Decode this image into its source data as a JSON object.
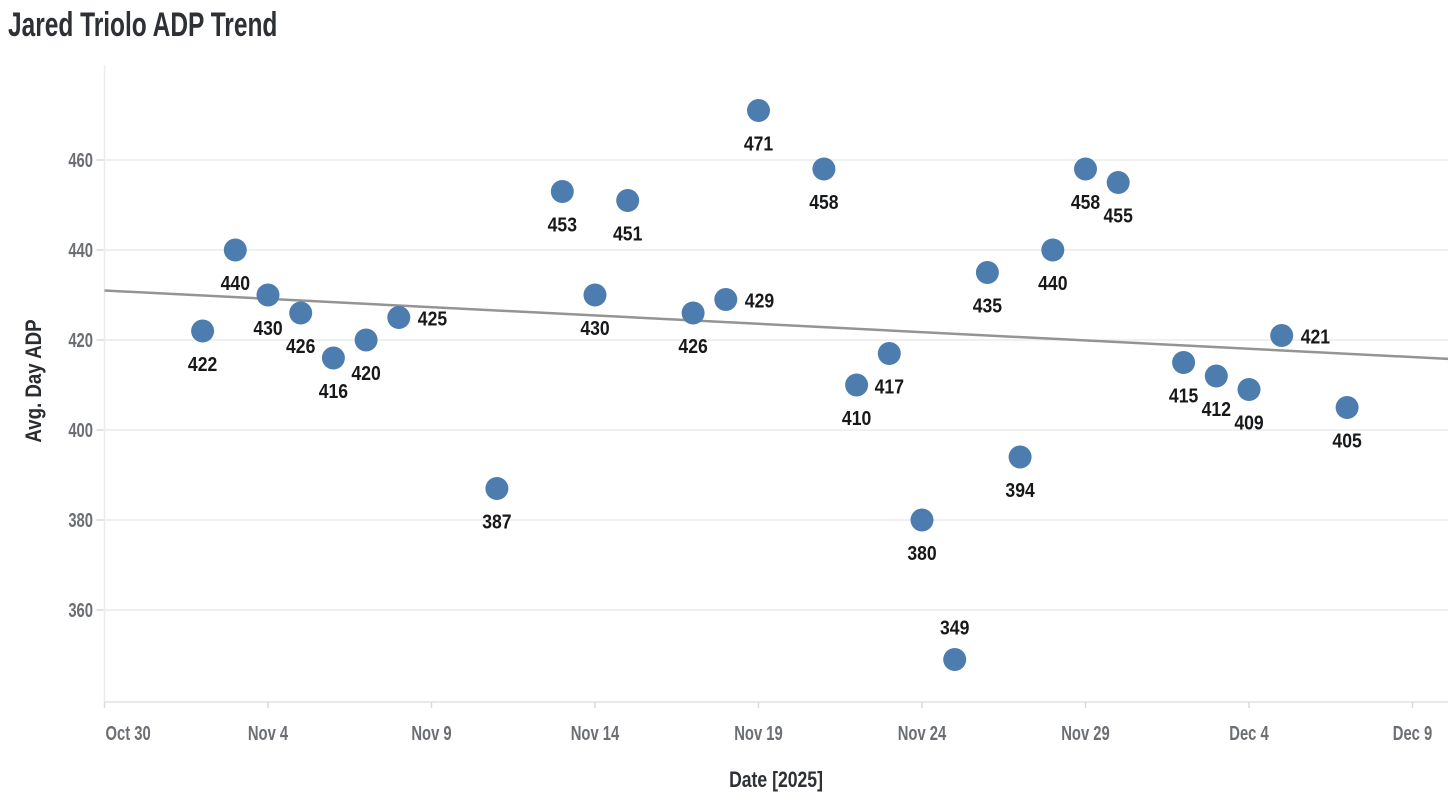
{
  "chart_data": {
    "type": "scatter",
    "title": "Jared Triolo ADP Trend",
    "x_axis": {
      "title": "Date [2025]",
      "tick_labels": [
        "Oct 30",
        "Nov 4",
        "Nov 9",
        "Nov 14",
        "Nov 19",
        "Nov 24",
        "Nov 29",
        "Dec 4",
        "Dec 9"
      ]
    },
    "y_axis": {
      "title": "Avg. Day ADP",
      "ticks": [
        360,
        380,
        400,
        420,
        440,
        460
      ],
      "ylim": [
        340,
        477
      ]
    },
    "grid": "horizontal-only",
    "legend": "none",
    "points": [
      {
        "date": "Nov 2",
        "value": 422,
        "label": "422",
        "label_pos": "below"
      },
      {
        "date": "Nov 3",
        "value": 440,
        "label": "440",
        "label_pos": "below"
      },
      {
        "date": "Nov 4",
        "value": 430,
        "label": "430",
        "label_pos": "below"
      },
      {
        "date": "Nov 5",
        "value": 426,
        "label": "426",
        "label_pos": "below"
      },
      {
        "date": "Nov 6",
        "value": 416,
        "label": "416",
        "label_pos": "below"
      },
      {
        "date": "Nov 7",
        "value": 420,
        "label": "420",
        "label_pos": "below"
      },
      {
        "date": "Nov 8",
        "value": 425,
        "label": "425",
        "label_pos": "right"
      },
      {
        "date": "Nov 11",
        "value": 387,
        "label": "387",
        "label_pos": "below"
      },
      {
        "date": "Nov 13",
        "value": 453,
        "label": "453",
        "label_pos": "below"
      },
      {
        "date": "Nov 14",
        "value": 430,
        "label": "430",
        "label_pos": "below"
      },
      {
        "date": "Nov 15",
        "value": 451,
        "label": "451",
        "label_pos": "below"
      },
      {
        "date": "Nov 17",
        "value": 426,
        "label": "426",
        "label_pos": "below"
      },
      {
        "date": "Nov 18",
        "value": 429,
        "label": "429",
        "label_pos": "right"
      },
      {
        "date": "Nov 19",
        "value": 471,
        "label": "471",
        "label_pos": "below"
      },
      {
        "date": "Nov 21",
        "value": 458,
        "label": "458",
        "label_pos": "below"
      },
      {
        "date": "Nov 22",
        "value": 410,
        "label": "410",
        "label_pos": "below"
      },
      {
        "date": "Nov 23",
        "value": 417,
        "label": "417",
        "label_pos": "below"
      },
      {
        "date": "Nov 24",
        "value": 380,
        "label": "380",
        "label_pos": "below"
      },
      {
        "date": "Nov 25",
        "value": 349,
        "label": "349",
        "label_pos": "above"
      },
      {
        "date": "Nov 26",
        "value": 435,
        "label": "435",
        "label_pos": "below"
      },
      {
        "date": "Nov 27",
        "value": 394,
        "label": "394",
        "label_pos": "below"
      },
      {
        "date": "Nov 28",
        "value": 440,
        "label": "440",
        "label_pos": "below"
      },
      {
        "date": "Nov 29",
        "value": 458,
        "label": "458",
        "label_pos": "below"
      },
      {
        "date": "Nov 30",
        "value": 455,
        "label": "455",
        "label_pos": "below"
      },
      {
        "date": "Dec 2",
        "value": 415,
        "label": "415",
        "label_pos": "below"
      },
      {
        "date": "Dec 3",
        "value": 412,
        "label": "412",
        "label_pos": "below"
      },
      {
        "date": "Dec 4",
        "value": 409,
        "label": "409",
        "label_pos": "below"
      },
      {
        "date": "Dec 5",
        "value": 421,
        "label": "421",
        "label_pos": "right"
      },
      {
        "date": "Dec 7",
        "value": 405,
        "label": "405",
        "label_pos": "below"
      }
    ],
    "trend_line": {
      "type": "linear",
      "start_date": "Oct 30",
      "start_value": 431,
      "end_value": 415.8
    },
    "colors": {
      "marker": "#4d7cae",
      "trend_line": "#949494",
      "data_label": "#17181a",
      "tick_label": "#6b6f73",
      "axis_title": "#2d3135",
      "title": "#2d3135",
      "gridline": "#ebebeb",
      "axis_line": "#e2e2e2",
      "tick_mark": "#d9d9d9",
      "background": "#ffffff"
    }
  }
}
